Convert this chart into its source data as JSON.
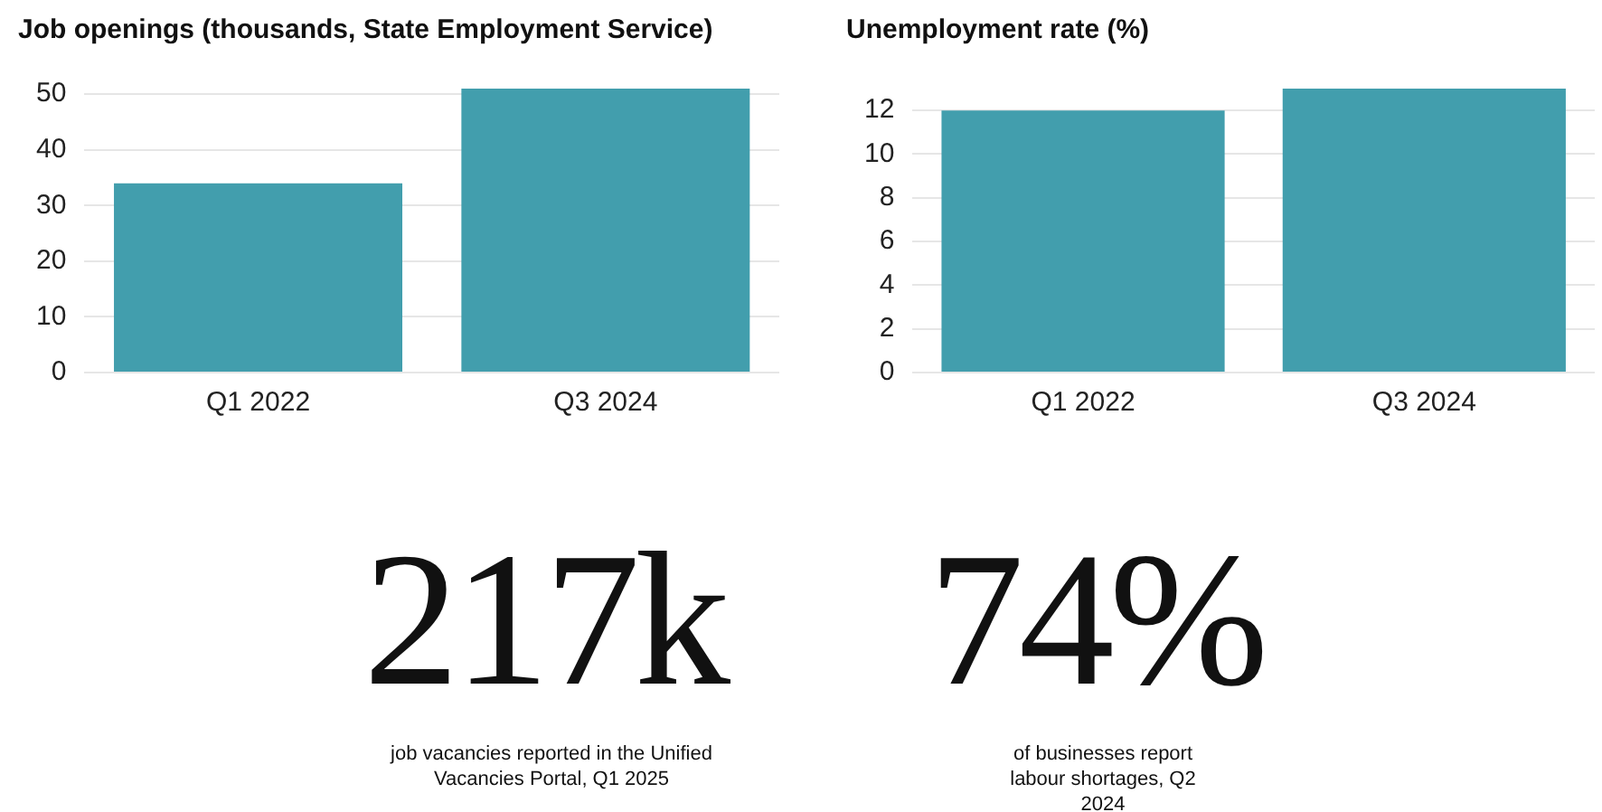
{
  "chart_data": [
    {
      "type": "bar",
      "title": "Job openings (thousands, State Employment Service)",
      "categories": [
        "Q1 2022",
        "Q3 2024"
      ],
      "values": [
        34,
        51
      ],
      "color": "#429ead",
      "ylim": [
        0,
        51
      ],
      "yticks": [
        0,
        10,
        20,
        30,
        40,
        50
      ],
      "grid": "y"
    },
    {
      "type": "bar",
      "title": "Unemployment rate (%)",
      "categories": [
        "Q1 2022",
        "Q3 2024"
      ],
      "values": [
        12,
        13
      ],
      "color": "#429ead",
      "ylim": [
        0,
        13
      ],
      "yticks": [
        0,
        2,
        4,
        6,
        8,
        10,
        12
      ],
      "grid": "y"
    },
    {
      "type": "other",
      "title": "217k",
      "annotations": [
        "job vacancies reported in the Unified Vacancies Portal, Q1 2025"
      ]
    },
    {
      "type": "other",
      "title": "74%",
      "annotations": [
        "of businesses report labour shortages, Q2 2024"
      ]
    }
  ]
}
